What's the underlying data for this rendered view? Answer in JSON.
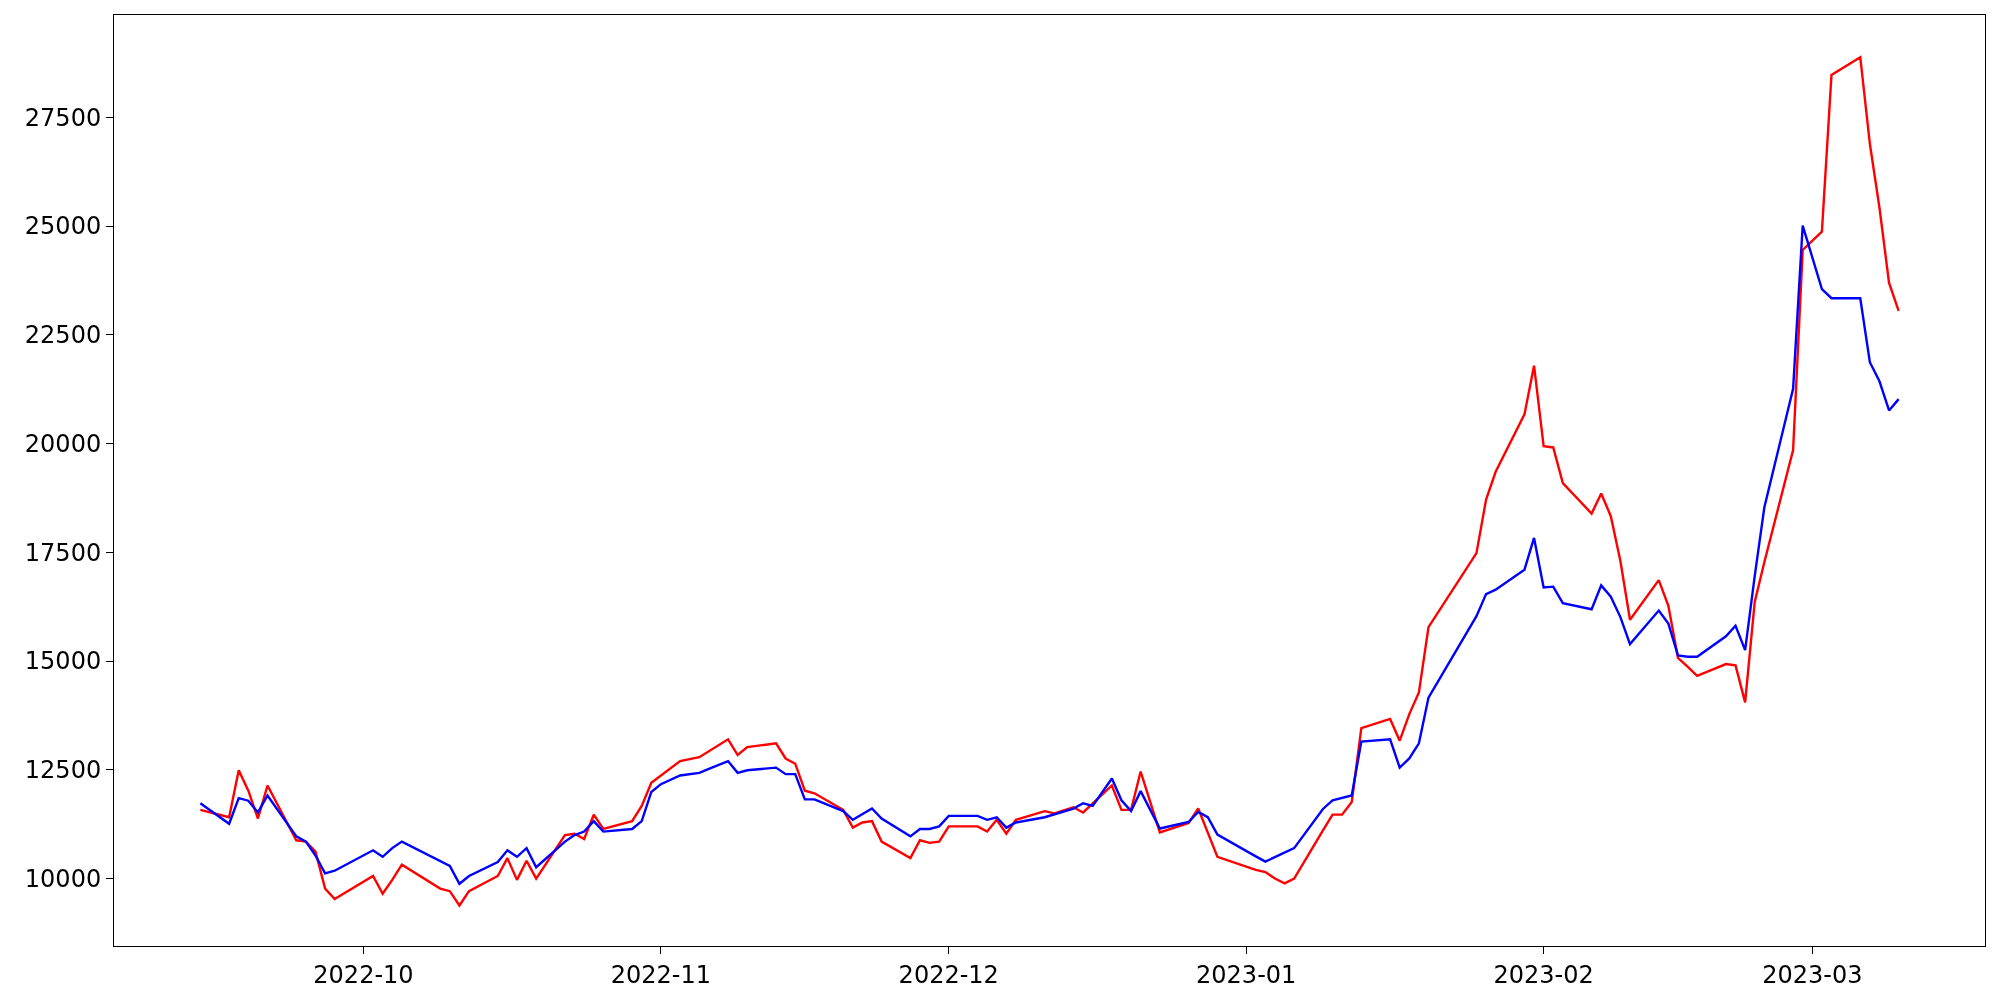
{
  "chart_data": {
    "type": "line",
    "line_style": "solid",
    "marker": "none",
    "xlim": [
      "2022-09-05",
      "2023-03-19"
    ],
    "xticks": [
      {
        "value": "2022-10-01",
        "label": "2022-10"
      },
      {
        "value": "2022-11-01",
        "label": "2022-11"
      },
      {
        "value": "2022-12-01",
        "label": "2022-12"
      },
      {
        "value": "2023-01-01",
        "label": "2023-01"
      },
      {
        "value": "2023-02-01",
        "label": "2023-02"
      },
      {
        "value": "2023-03-01",
        "label": "2023-03"
      }
    ],
    "ylim": [
      8450,
      29850
    ],
    "yticks": [
      10000,
      12500,
      15000,
      17500,
      20000,
      22500,
      25000,
      27500
    ],
    "series": [
      {
        "color": "#ff0000",
        "x": [
          "2022-09-14",
          "2022-09-17",
          "2022-09-18",
          "2022-09-19",
          "2022-09-20",
          "2022-09-21",
          "2022-09-24",
          "2022-09-25",
          "2022-09-26",
          "2022-09-27",
          "2022-09-28",
          "2022-10-02",
          "2022-10-03",
          "2022-10-04",
          "2022-10-05",
          "2022-10-09",
          "2022-10-10",
          "2022-10-11",
          "2022-10-12",
          "2022-10-15",
          "2022-10-16",
          "2022-10-17",
          "2022-10-18",
          "2022-10-19",
          "2022-10-22",
          "2022-10-23",
          "2022-10-24",
          "2022-10-25",
          "2022-10-26",
          "2022-10-29",
          "2022-10-30",
          "2022-10-31",
          "2022-11-03",
          "2022-11-05",
          "2022-11-08",
          "2022-11-09",
          "2022-11-10",
          "2022-11-13",
          "2022-11-14",
          "2022-11-15",
          "2022-11-16",
          "2022-11-17",
          "2022-11-20",
          "2022-11-21",
          "2022-11-22",
          "2022-11-23",
          "2022-11-24",
          "2022-11-27",
          "2022-11-28",
          "2022-11-29",
          "2022-11-30",
          "2022-12-01",
          "2022-12-04",
          "2022-12-05",
          "2022-12-06",
          "2022-12-07",
          "2022-12-08",
          "2022-12-11",
          "2022-12-12",
          "2022-12-14",
          "2022-12-15",
          "2022-12-18",
          "2022-12-19",
          "2022-12-20",
          "2022-12-21",
          "2022-12-23",
          "2022-12-26",
          "2022-12-27",
          "2022-12-29",
          "2023-01-02",
          "2023-01-03",
          "2023-01-04",
          "2023-01-05",
          "2023-01-06",
          "2023-01-09",
          "2023-01-10",
          "2023-01-11",
          "2023-01-12",
          "2023-01-13",
          "2023-01-16",
          "2023-01-17",
          "2023-01-18",
          "2023-01-19",
          "2023-01-20",
          "2023-01-25",
          "2023-01-26",
          "2023-01-27",
          "2023-01-30",
          "2023-01-31",
          "2023-02-01",
          "2023-02-02",
          "2023-02-03",
          "2023-02-06",
          "2023-02-07",
          "2023-02-08",
          "2023-02-09",
          "2023-02-10",
          "2023-02-13",
          "2023-02-14",
          "2023-02-15",
          "2023-02-16",
          "2023-02-17",
          "2023-02-20",
          "2023-02-21",
          "2023-02-22",
          "2023-02-23",
          "2023-02-24",
          "2023-02-27",
          "2023-02-28",
          "2023-03-02",
          "2023-03-03",
          "2023-03-06",
          "2023-03-07",
          "2023-03-08",
          "2023-03-09",
          "2023-03-10"
        ],
        "values": [
          11580,
          11410,
          12490,
          12020,
          11380,
          12140,
          10880,
          10850,
          10620,
          9770,
          9530,
          10060,
          9650,
          9970,
          10320,
          9770,
          9710,
          9380,
          9710,
          10060,
          10470,
          9970,
          10410,
          10000,
          11000,
          11030,
          10910,
          11470,
          11140,
          11320,
          11670,
          12200,
          12700,
          12790,
          13200,
          12840,
          13020,
          13110,
          12760,
          12640,
          12020,
          11960,
          11580,
          11170,
          11290,
          11320,
          10850,
          10470,
          10880,
          10820,
          10850,
          11200,
          11200,
          11080,
          11350,
          11030,
          11350,
          11550,
          11500,
          11640,
          11520,
          12140,
          11580,
          11580,
          12460,
          11060,
          11280,
          11610,
          10500,
          10200,
          10150,
          10000,
          9890,
          10000,
          11110,
          11470,
          11470,
          11760,
          13460,
          13670,
          13170,
          13780,
          14280,
          15780,
          17480,
          18710,
          19350,
          20670,
          21790,
          19940,
          19910,
          19090,
          18390,
          18850,
          18330,
          17300,
          15950,
          16860,
          16270,
          15070,
          14870,
          14660,
          14930,
          14900,
          14050,
          16360,
          17270,
          19850,
          24450,
          24870,
          28470,
          28880,
          26890,
          25420,
          23690,
          23050
        ]
      },
      {
        "color": "#0000ff",
        "x": [
          "2022-09-14",
          "2022-09-17",
          "2022-09-18",
          "2022-09-19",
          "2022-09-20",
          "2022-09-21",
          "2022-09-24",
          "2022-09-25",
          "2022-09-26",
          "2022-09-27",
          "2022-09-28",
          "2022-10-02",
          "2022-10-03",
          "2022-10-04",
          "2022-10-05",
          "2022-10-10",
          "2022-10-11",
          "2022-10-12",
          "2022-10-15",
          "2022-10-16",
          "2022-10-17",
          "2022-10-18",
          "2022-10-19",
          "2022-10-22",
          "2022-10-23",
          "2022-10-24",
          "2022-10-25",
          "2022-10-26",
          "2022-10-29",
          "2022-10-30",
          "2022-10-31",
          "2022-11-01",
          "2022-11-03",
          "2022-11-05",
          "2022-11-06",
          "2022-11-08",
          "2022-11-09",
          "2022-11-10",
          "2022-11-13",
          "2022-11-14",
          "2022-11-15",
          "2022-11-16",
          "2022-11-17",
          "2022-11-20",
          "2022-11-21",
          "2022-11-23",
          "2022-11-24",
          "2022-11-27",
          "2022-11-28",
          "2022-11-29",
          "2022-11-30",
          "2022-12-01",
          "2022-12-04",
          "2022-12-05",
          "2022-12-06",
          "2022-12-07",
          "2022-12-08",
          "2022-12-11",
          "2022-12-14",
          "2022-12-15",
          "2022-12-16",
          "2022-12-18",
          "2022-12-19",
          "2022-12-20",
          "2022-12-21",
          "2022-12-23",
          "2022-12-26",
          "2022-12-27",
          "2022-12-28",
          "2022-12-29",
          "2023-01-02",
          "2023-01-03",
          "2023-01-06",
          "2023-01-09",
          "2023-01-10",
          "2023-01-12",
          "2023-01-13",
          "2023-01-16",
          "2023-01-17",
          "2023-01-18",
          "2023-01-19",
          "2023-01-20",
          "2023-01-25",
          "2023-01-26",
          "2023-01-27",
          "2023-01-30",
          "2023-01-31",
          "2023-02-01",
          "2023-02-02",
          "2023-02-03",
          "2023-02-06",
          "2023-02-07",
          "2023-02-08",
          "2023-02-09",
          "2023-02-10",
          "2023-02-13",
          "2023-02-14",
          "2023-02-15",
          "2023-02-16",
          "2023-02-17",
          "2023-02-20",
          "2023-02-21",
          "2023-02-22",
          "2023-02-23",
          "2023-02-24",
          "2023-02-27",
          "2023-02-28",
          "2023-03-02",
          "2023-03-03",
          "2023-03-06",
          "2023-03-07",
          "2023-03-08",
          "2023-03-09",
          "2023-03-10"
        ],
        "values": [
          11730,
          11260,
          11850,
          11790,
          11520,
          11910,
          10970,
          10850,
          10530,
          10120,
          10180,
          10650,
          10500,
          10700,
          10850,
          10290,
          9880,
          10060,
          10380,
          10650,
          10500,
          10700,
          10260,
          10850,
          11000,
          11080,
          11320,
          11080,
          11140,
          11320,
          11990,
          12170,
          12370,
          12430,
          12520,
          12700,
          12430,
          12490,
          12550,
          12400,
          12400,
          11820,
          11820,
          11550,
          11350,
          11610,
          11380,
          10970,
          11140,
          11140,
          11200,
          11440,
          11440,
          11350,
          11410,
          11170,
          11290,
          11410,
          11610,
          11730,
          11670,
          12300,
          11800,
          11550,
          12010,
          11150,
          11300,
          11530,
          11410,
          11010,
          10510,
          10390,
          10700,
          11600,
          11800,
          11910,
          13150,
          13200,
          12550,
          12760,
          13110,
          14160,
          16030,
          16540,
          16640,
          17100,
          17830,
          16690,
          16710,
          16330,
          16190,
          16740,
          16480,
          16010,
          15390,
          16160,
          15860,
          15130,
          15100,
          15100,
          15570,
          15810,
          15250,
          16950,
          18530,
          21260,
          25010,
          23550,
          23340,
          23340,
          21870,
          21430,
          20760,
          21020
        ]
      }
    ]
  }
}
